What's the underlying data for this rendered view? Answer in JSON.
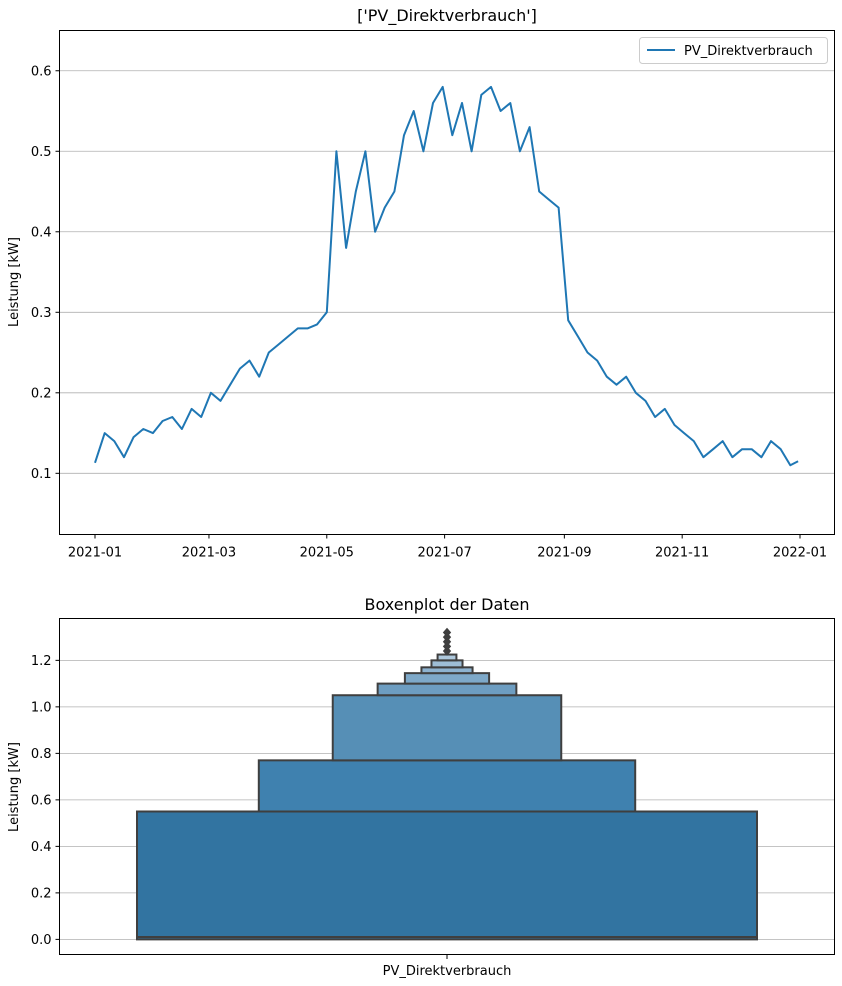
{
  "chart_data": [
    {
      "type": "line",
      "title": "['PV_Direktverbrauch']",
      "xlabel": "",
      "ylabel": "Leistung [kW]",
      "x_ticks": [
        "2021-01",
        "2021-03",
        "2021-05",
        "2021-07",
        "2021-09",
        "2021-11",
        "2022-01"
      ],
      "y_ticks": [
        "0.1",
        "0.2",
        "0.3",
        "0.4",
        "0.5",
        "0.6"
      ],
      "ylim": [
        0.024,
        0.65
      ],
      "grid": "horizontal",
      "legend": {
        "position": "top-right",
        "entries": [
          "PV_Direktverbrauch"
        ]
      },
      "series": [
        {
          "name": "PV_Direktverbrauch",
          "color": "#1f77b4",
          "x": [
            "2021-01-01",
            "2021-01-06",
            "2021-01-11",
            "2021-01-16",
            "2021-01-21",
            "2021-01-26",
            "2021-01-31",
            "2021-02-05",
            "2021-02-10",
            "2021-02-15",
            "2021-02-20",
            "2021-02-25",
            "2021-03-02",
            "2021-03-07",
            "2021-03-12",
            "2021-03-17",
            "2021-03-22",
            "2021-03-27",
            "2021-04-01",
            "2021-04-06",
            "2021-04-11",
            "2021-04-16",
            "2021-04-21",
            "2021-04-26",
            "2021-05-01",
            "2021-05-06",
            "2021-05-11",
            "2021-05-16",
            "2021-05-21",
            "2021-05-26",
            "2021-05-31",
            "2021-06-05",
            "2021-06-10",
            "2021-06-15",
            "2021-06-20",
            "2021-06-25",
            "2021-06-30",
            "2021-07-05",
            "2021-07-10",
            "2021-07-15",
            "2021-07-20",
            "2021-07-25",
            "2021-07-30",
            "2021-08-04",
            "2021-08-09",
            "2021-08-14",
            "2021-08-19",
            "2021-08-24",
            "2021-08-29",
            "2021-09-03",
            "2021-09-08",
            "2021-09-13",
            "2021-09-18",
            "2021-09-23",
            "2021-09-28",
            "2021-10-03",
            "2021-10-08",
            "2021-10-13",
            "2021-10-18",
            "2021-10-23",
            "2021-10-28",
            "2021-11-02",
            "2021-11-07",
            "2021-11-12",
            "2021-11-17",
            "2021-11-22",
            "2021-11-27",
            "2021-12-02",
            "2021-12-07",
            "2021-12-12",
            "2021-12-17",
            "2021-12-22",
            "2021-12-27",
            "2021-12-31"
          ],
          "values": [
            0.113,
            0.15,
            0.14,
            0.12,
            0.145,
            0.155,
            0.15,
            0.165,
            0.17,
            0.155,
            0.18,
            0.17,
            0.2,
            0.19,
            0.21,
            0.23,
            0.24,
            0.22,
            0.25,
            0.26,
            0.27,
            0.28,
            0.28,
            0.285,
            0.3,
            0.5,
            0.38,
            0.45,
            0.5,
            0.4,
            0.43,
            0.45,
            0.52,
            0.55,
            0.5,
            0.56,
            0.58,
            0.52,
            0.56,
            0.5,
            0.57,
            0.58,
            0.55,
            0.56,
            0.5,
            0.53,
            0.45,
            0.44,
            0.43,
            0.29,
            0.27,
            0.25,
            0.24,
            0.22,
            0.21,
            0.22,
            0.2,
            0.19,
            0.17,
            0.18,
            0.16,
            0.15,
            0.14,
            0.12,
            0.13,
            0.14,
            0.12,
            0.13,
            0.13,
            0.12,
            0.14,
            0.13,
            0.11,
            0.115
          ]
        }
      ]
    },
    {
      "type": "boxen",
      "title": "Boxenplot der Daten",
      "xlabel": "",
      "ylabel": "Leistung [kW]",
      "categories": [
        "PV_Direktverbrauch"
      ],
      "y_ticks": [
        "0.0",
        "0.2",
        "0.4",
        "0.6",
        "0.8",
        "1.0",
        "1.2"
      ],
      "ylim": [
        -0.065,
        1.38
      ],
      "grid": "horizontal",
      "median": 0.01,
      "letter_values": [
        {
          "lower": 0.0,
          "upper": 0.55
        },
        {
          "lower": 0.55,
          "upper": 0.77
        },
        {
          "lower": 0.77,
          "upper": 1.05
        },
        {
          "lower": 1.05,
          "upper": 1.1
        },
        {
          "lower": 1.1,
          "upper": 1.145
        },
        {
          "lower": 1.145,
          "upper": 1.17
        },
        {
          "lower": 1.17,
          "upper": 1.2
        },
        {
          "lower": 1.2,
          "upper": 1.225
        }
      ],
      "outliers": [
        1.24,
        1.26,
        1.28,
        1.3,
        1.32
      ],
      "box_colors": [
        "#3274a1",
        "#3f81af",
        "#568fb6",
        "#6d9dc1",
        "#7ea9c9",
        "#8eb3d0",
        "#9ebed6",
        "#aec8dc"
      ]
    }
  ]
}
